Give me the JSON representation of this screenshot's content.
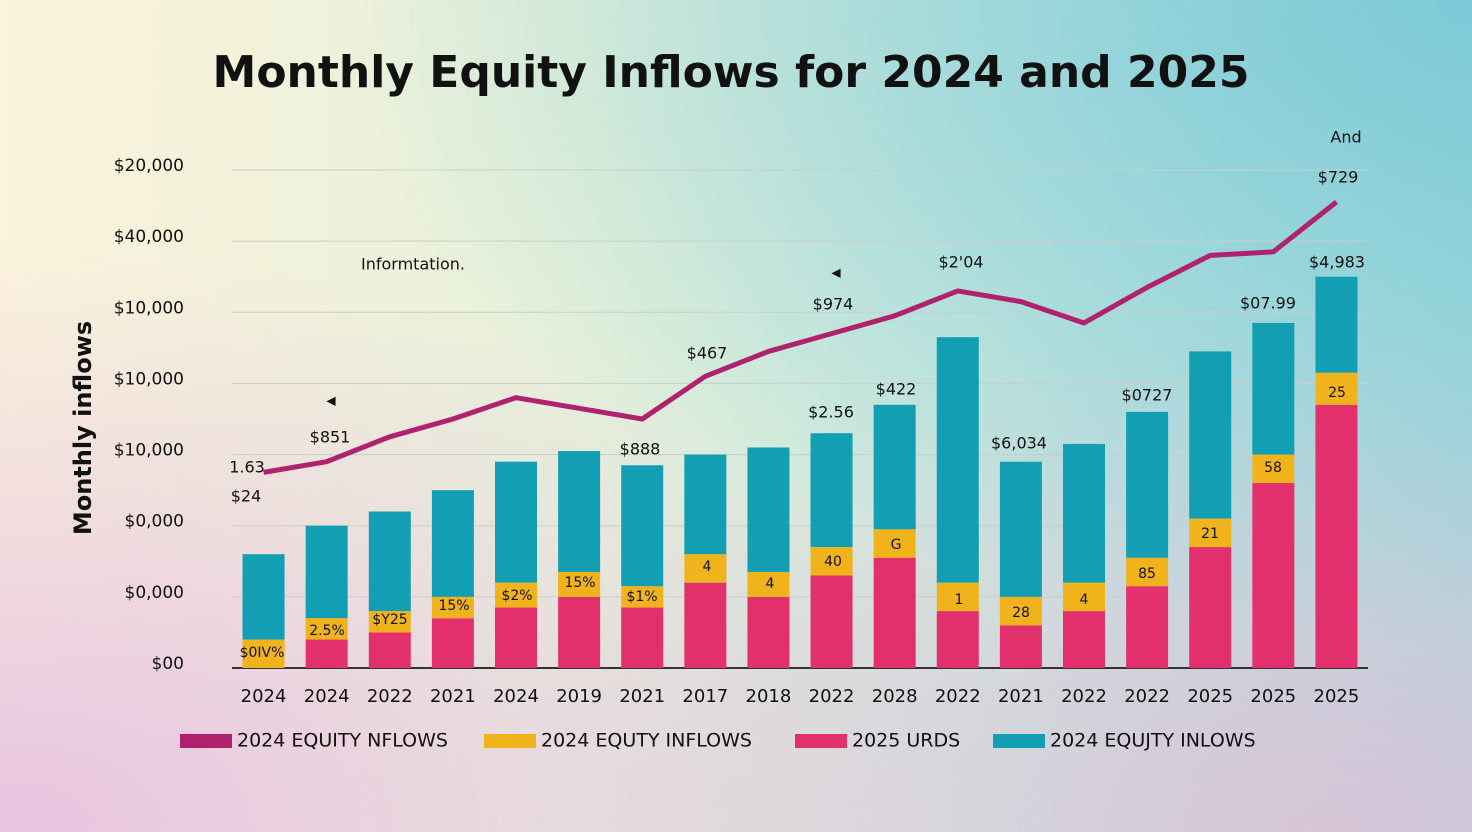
{
  "chart_data": {
    "type": "bar",
    "stacked": true,
    "title": "Monthly Equity Inflows for 2024 and 2025",
    "y_label": "Monthly inflows",
    "categories": [
      "2024",
      "2024",
      "2022",
      "2021",
      "2024",
      "2019",
      "2021",
      "2017",
      "2018",
      "2022",
      "2028",
      "2022",
      "2021",
      "2022",
      "2022",
      "2025",
      "2025",
      "2025"
    ],
    "series": [
      {
        "name": "2024 EQUITY NFLOWS",
        "type": "line",
        "color": "#b0226e",
        "values": [
          2.75,
          2.9,
          3.25,
          3.5,
          3.8,
          3.65,
          3.5,
          4.1,
          4.45,
          4.7,
          4.95,
          5.3,
          5.15,
          4.85,
          5.35,
          5.8,
          5.85,
          6.55
        ]
      },
      {
        "name": "2025 URDS",
        "type": "bar",
        "color": "#e2306d",
        "values": [
          0,
          0.4,
          0.5,
          0.7,
          0.85,
          1.0,
          0.85,
          1.2,
          1.0,
          1.3,
          1.55,
          0.8,
          0.6,
          0.8,
          1.15,
          1.7,
          2.6,
          3.7
        ]
      },
      {
        "name": "2024 EQUTY INFLOWS",
        "type": "bar",
        "color": "#f1b31b",
        "values": [
          0.4,
          0.3,
          0.3,
          0.3,
          0.35,
          0.35,
          0.3,
          0.4,
          0.35,
          0.4,
          0.4,
          0.4,
          0.4,
          0.4,
          0.4,
          0.4,
          0.4,
          0.45
        ]
      },
      {
        "name": "2024 EQUJTY  INLOWS",
        "type": "bar",
        "color": "#129fb3",
        "values": [
          1.2,
          1.3,
          1.4,
          1.5,
          1.7,
          1.7,
          1.7,
          1.4,
          1.75,
          1.6,
          1.75,
          3.45,
          1.9,
          1.95,
          2.05,
          2.35,
          1.85,
          1.35
        ]
      }
    ],
    "legend_order": [
      0,
      2,
      1,
      3
    ],
    "ylim": [
      0,
      7
    ],
    "yticks": [
      {
        "value": 0,
        "label": "$00"
      },
      {
        "value": 1,
        "label": "$0,000"
      },
      {
        "value": 2,
        "label": "$0,000"
      },
      {
        "value": 3,
        "label": "$10,000"
      },
      {
        "value": 4,
        "label": "$10,000"
      },
      {
        "value": 5,
        "label": "$10,000"
      },
      {
        "value": 6,
        "label": "$40,000"
      },
      {
        "value": 7,
        "label": "$20,000"
      }
    ],
    "grid": true,
    "annotations": [
      "1.63",
      "$24",
      "$851",
      "$888",
      "$467",
      "$974",
      "$2'04",
      "$422",
      "$2.56",
      "$6,034",
      "$0727",
      "$07.99",
      "$4,983",
      "$729",
      "And",
      "Informtation.",
      "$0IV%",
      "2.5%",
      "$Y25",
      "15%",
      "$2%",
      "15%",
      "$1%",
      "4",
      "4",
      "40",
      "G",
      "1",
      "28",
      "4",
      "85",
      "21",
      "58",
      "25"
    ]
  }
}
